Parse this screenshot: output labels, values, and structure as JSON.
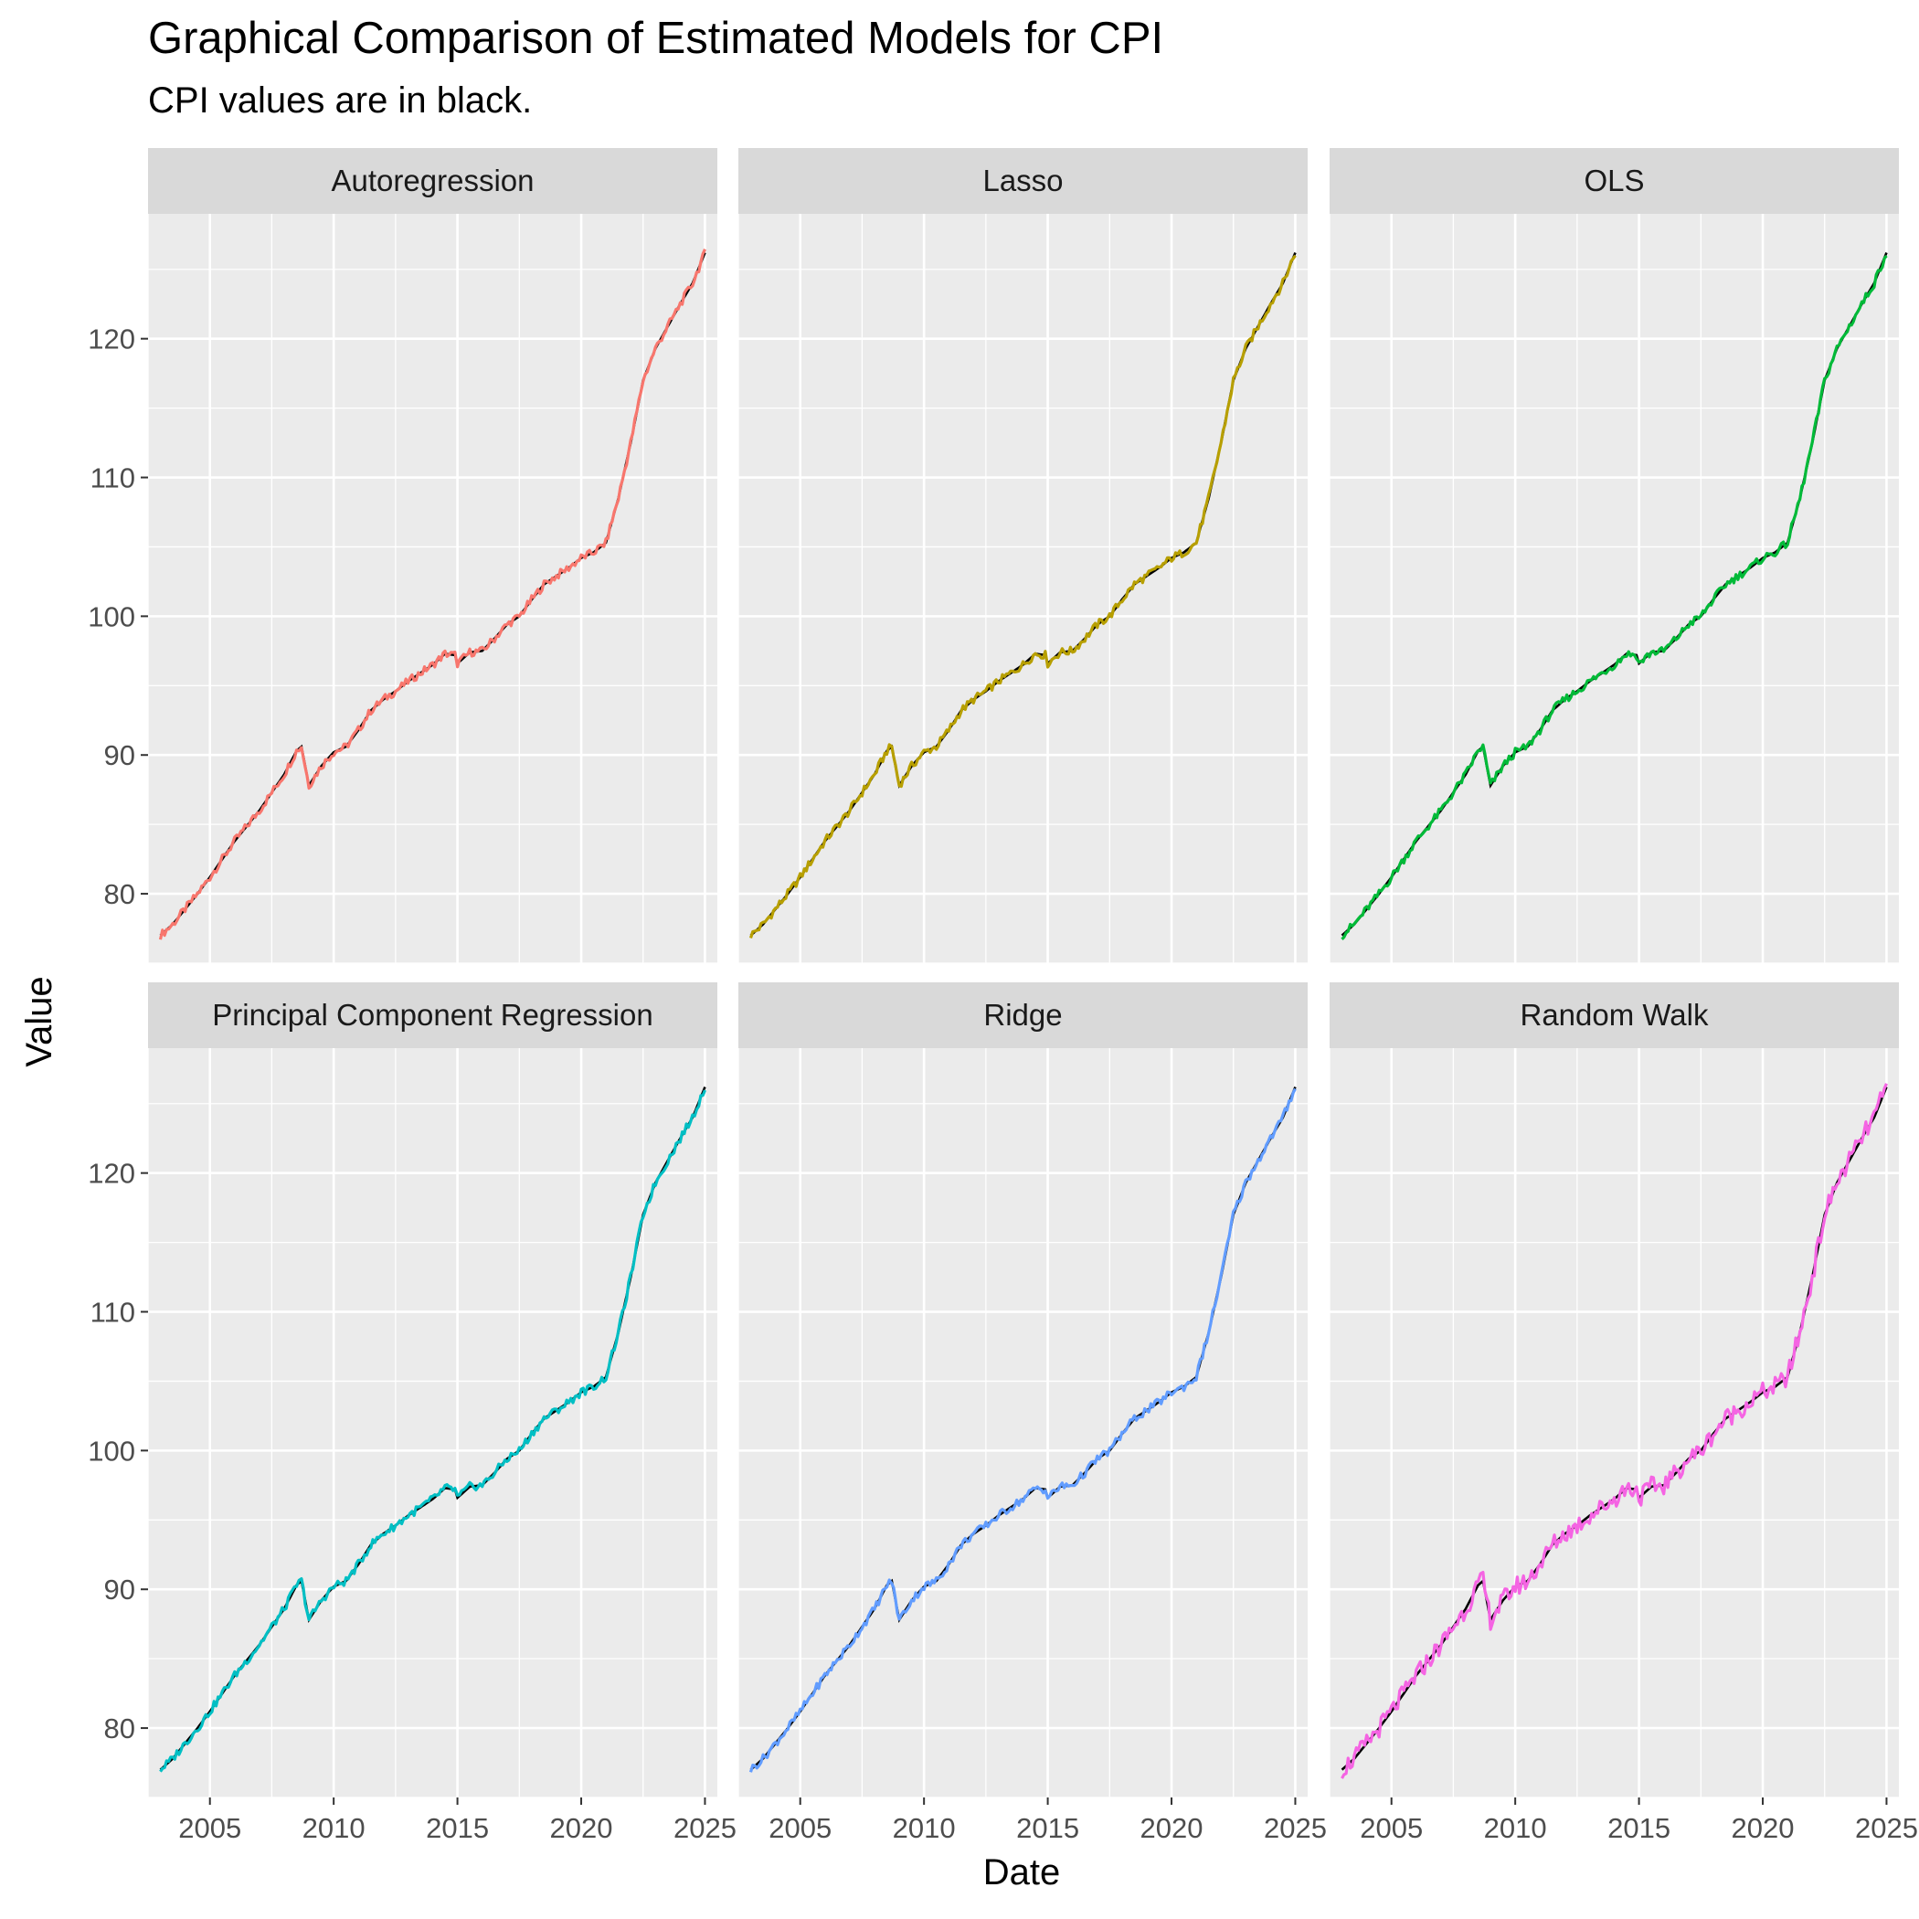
{
  "chart_data": {
    "type": "line",
    "title": "Graphical Comparison of Estimated Models for CPI",
    "subtitle": "CPI values are in black.",
    "xlabel": "Date",
    "ylabel": "Value",
    "xlim": [
      2002.5,
      2025.5
    ],
    "ylim": [
      75,
      129
    ],
    "x_ticks": [
      2005,
      2010,
      2015,
      2020,
      2025
    ],
    "y_ticks": [
      80,
      90,
      100,
      110,
      120
    ],
    "grid": true,
    "legend": "none",
    "actual_series": {
      "name": "CPI",
      "color": "#000000",
      "x": [
        2003.0,
        2003.5,
        2004.0,
        2004.5,
        2005.0,
        2005.5,
        2006.0,
        2006.5,
        2007.0,
        2007.5,
        2008.0,
        2008.5,
        2008.7,
        2009.0,
        2009.5,
        2010.0,
        2010.5,
        2011.0,
        2011.5,
        2012.0,
        2012.5,
        2013.0,
        2013.5,
        2014.0,
        2014.5,
        2014.9,
        2015.0,
        2015.5,
        2016.0,
        2016.5,
        2017.0,
        2017.5,
        2018.0,
        2018.5,
        2019.0,
        2019.5,
        2020.0,
        2020.5,
        2021.0,
        2021.5,
        2022.0,
        2022.5,
        2023.0,
        2023.5,
        2024.0,
        2024.5,
        2025.0
      ],
      "values": [
        77.0,
        77.8,
        78.9,
        80.0,
        81.2,
        82.5,
        83.8,
        84.9,
        86.0,
        87.3,
        88.6,
        90.3,
        90.6,
        87.8,
        89.2,
        90.2,
        90.6,
        91.8,
        93.2,
        94.0,
        94.6,
        95.3,
        95.9,
        96.5,
        97.3,
        97.2,
        96.6,
        97.4,
        97.5,
        98.4,
        99.4,
        100.0,
        101.2,
        102.3,
        102.9,
        103.5,
        104.2,
        104.6,
        105.3,
        108.5,
        112.5,
        117.0,
        119.3,
        120.9,
        122.5,
        124.0,
        126.2
      ]
    },
    "series": [
      {
        "name": "Autoregression",
        "color": "#F8766D"
      },
      {
        "name": "Lasso",
        "color": "#B79F00"
      },
      {
        "name": "OLS",
        "color": "#00BA38"
      },
      {
        "name": "Principal Component Regression",
        "color": "#00BFC4"
      },
      {
        "name": "Ridge",
        "color": "#619CFF"
      },
      {
        "name": "Random Walk",
        "color": "#F564E3"
      }
    ]
  }
}
